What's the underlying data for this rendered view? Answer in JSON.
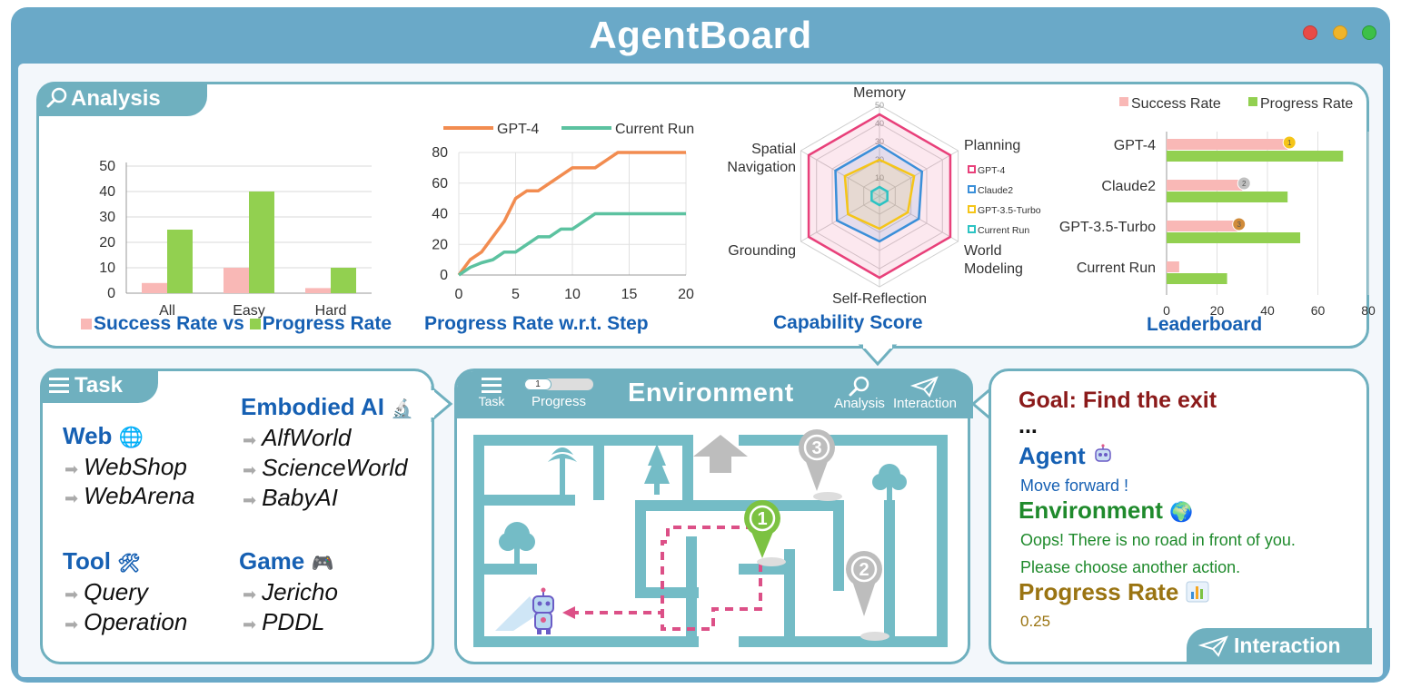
{
  "window": {
    "title": "AgentBoard"
  },
  "analysis": {
    "tab_label": "Analysis",
    "success_vs_progress": {
      "title_success": "Success Rate vs",
      "title_progress": "Progress Rate"
    },
    "progress_step": {
      "title": "Progress Rate w.r.t. Step"
    },
    "capability": {
      "title": "Capability Score"
    },
    "leaderboard": {
      "title": "Leaderboard"
    }
  },
  "chart_data": [
    {
      "type": "bar",
      "categories": [
        "All",
        "Easy",
        "Hard"
      ],
      "series": [
        {
          "name": "Success Rate",
          "values": [
            4,
            10,
            2
          ]
        },
        {
          "name": "Progress Rate",
          "values": [
            25,
            40,
            10
          ]
        }
      ],
      "ylim": [
        0,
        50
      ],
      "yticks": [
        0,
        10,
        20,
        30,
        40,
        50
      ],
      "colors": {
        "Success Rate": "#f9b8b6",
        "Progress Rate": "#92d050"
      }
    },
    {
      "type": "line",
      "xlim": [
        0,
        20
      ],
      "ylim": [
        0,
        80
      ],
      "xticks": [
        0,
        5,
        10,
        15,
        20
      ],
      "yticks": [
        0,
        20,
        40,
        60,
        80
      ],
      "series": [
        {
          "name": "GPT-4",
          "color": "#f28c50",
          "x": [
            0,
            1,
            2,
            3,
            4,
            5,
            6,
            7,
            8,
            9,
            10,
            11,
            12,
            13,
            14,
            15,
            16,
            17,
            18,
            19,
            20
          ],
          "y": [
            0,
            10,
            15,
            25,
            35,
            50,
            55,
            55,
            60,
            65,
            70,
            70,
            70,
            75,
            80,
            80,
            80,
            80,
            80,
            80,
            80
          ]
        },
        {
          "name": "Current Run",
          "color": "#5cc2a0",
          "x": [
            0,
            1,
            2,
            3,
            4,
            5,
            6,
            7,
            8,
            9,
            10,
            11,
            12,
            13,
            14,
            15,
            16,
            17,
            18,
            19,
            20
          ],
          "y": [
            0,
            5,
            8,
            10,
            15,
            15,
            20,
            25,
            25,
            30,
            30,
            35,
            40,
            40,
            40,
            40,
            40,
            40,
            40,
            40,
            40
          ]
        }
      ],
      "legend": "top"
    },
    {
      "type": "radar",
      "axes": [
        "Memory",
        "Planning",
        "World Modeling",
        "Self-Reflection",
        "Grounding",
        "Spatial Navigation"
      ],
      "rticks": [
        10,
        20,
        30,
        40,
        50
      ],
      "rmax": 50,
      "series": [
        {
          "name": "GPT-4",
          "color": "#e8407a",
          "values": [
            45,
            45,
            45,
            45,
            45,
            45
          ]
        },
        {
          "name": "Claude2",
          "color": "#3a8fd9",
          "values": [
            28,
            27,
            25,
            25,
            27,
            28
          ]
        },
        {
          "name": "GPT-3.5-Turbo",
          "color": "#f5c518",
          "values": [
            20,
            22,
            18,
            18,
            20,
            22
          ]
        },
        {
          "name": "Current Run",
          "color": "#2cc3c3",
          "values": [
            5,
            5,
            5,
            5,
            5,
            5
          ]
        }
      ],
      "legend": "right"
    },
    {
      "type": "bar",
      "orientation": "horizontal",
      "categories": [
        "GPT-4",
        "Claude2",
        "GPT-3.5-Turbo",
        "Current Run"
      ],
      "series": [
        {
          "name": "Success Rate",
          "values": [
            48,
            30,
            28,
            5
          ]
        },
        {
          "name": "Progress Rate",
          "values": [
            70,
            48,
            53,
            24
          ]
        }
      ],
      "xlim": [
        0,
        80
      ],
      "xticks": [
        0,
        20,
        40,
        60,
        80
      ],
      "medals": [
        "1",
        "2",
        "3",
        ""
      ],
      "legend": "top"
    }
  ],
  "task": {
    "tab_label": "Task",
    "web": {
      "label": "Web",
      "items": [
        "WebShop",
        "WebArena"
      ]
    },
    "embodied": {
      "label": "Embodied AI",
      "items": [
        "AlfWorld",
        "ScienceWorld",
        "BabyAI"
      ]
    },
    "tool": {
      "label": "Tool",
      "items": [
        "Query",
        "Operation"
      ]
    },
    "game": {
      "label": "Game",
      "items": [
        "Jericho",
        "PDDL"
      ]
    }
  },
  "environment": {
    "title": "Environment",
    "task_btn": "Task",
    "progress_btn": "Progress",
    "progress_value": "1",
    "analysis_btn": "Analysis",
    "interaction_btn": "Interaction",
    "markers": [
      "1",
      "2",
      "3"
    ]
  },
  "interaction": {
    "goal": "Goal: Find the exit",
    "ellipsis": "...",
    "agent_label": "Agent",
    "agent_msg": "Move forward !",
    "env_label": "Environment",
    "env_msg1": "Oops! There is no road in front of you.",
    "env_msg2": "Please choose another action.",
    "progress_label": "Progress Rate",
    "progress_value": "0.25",
    "tab_label": "Interaction"
  },
  "colors": {
    "frame": "#6aa9c8",
    "panel_border": "#6fb0bf",
    "title_blue": "#1660b3",
    "goal_red": "#8b1a1a",
    "env_green": "#1f8a2c",
    "progress_gold": "#9a7412"
  }
}
